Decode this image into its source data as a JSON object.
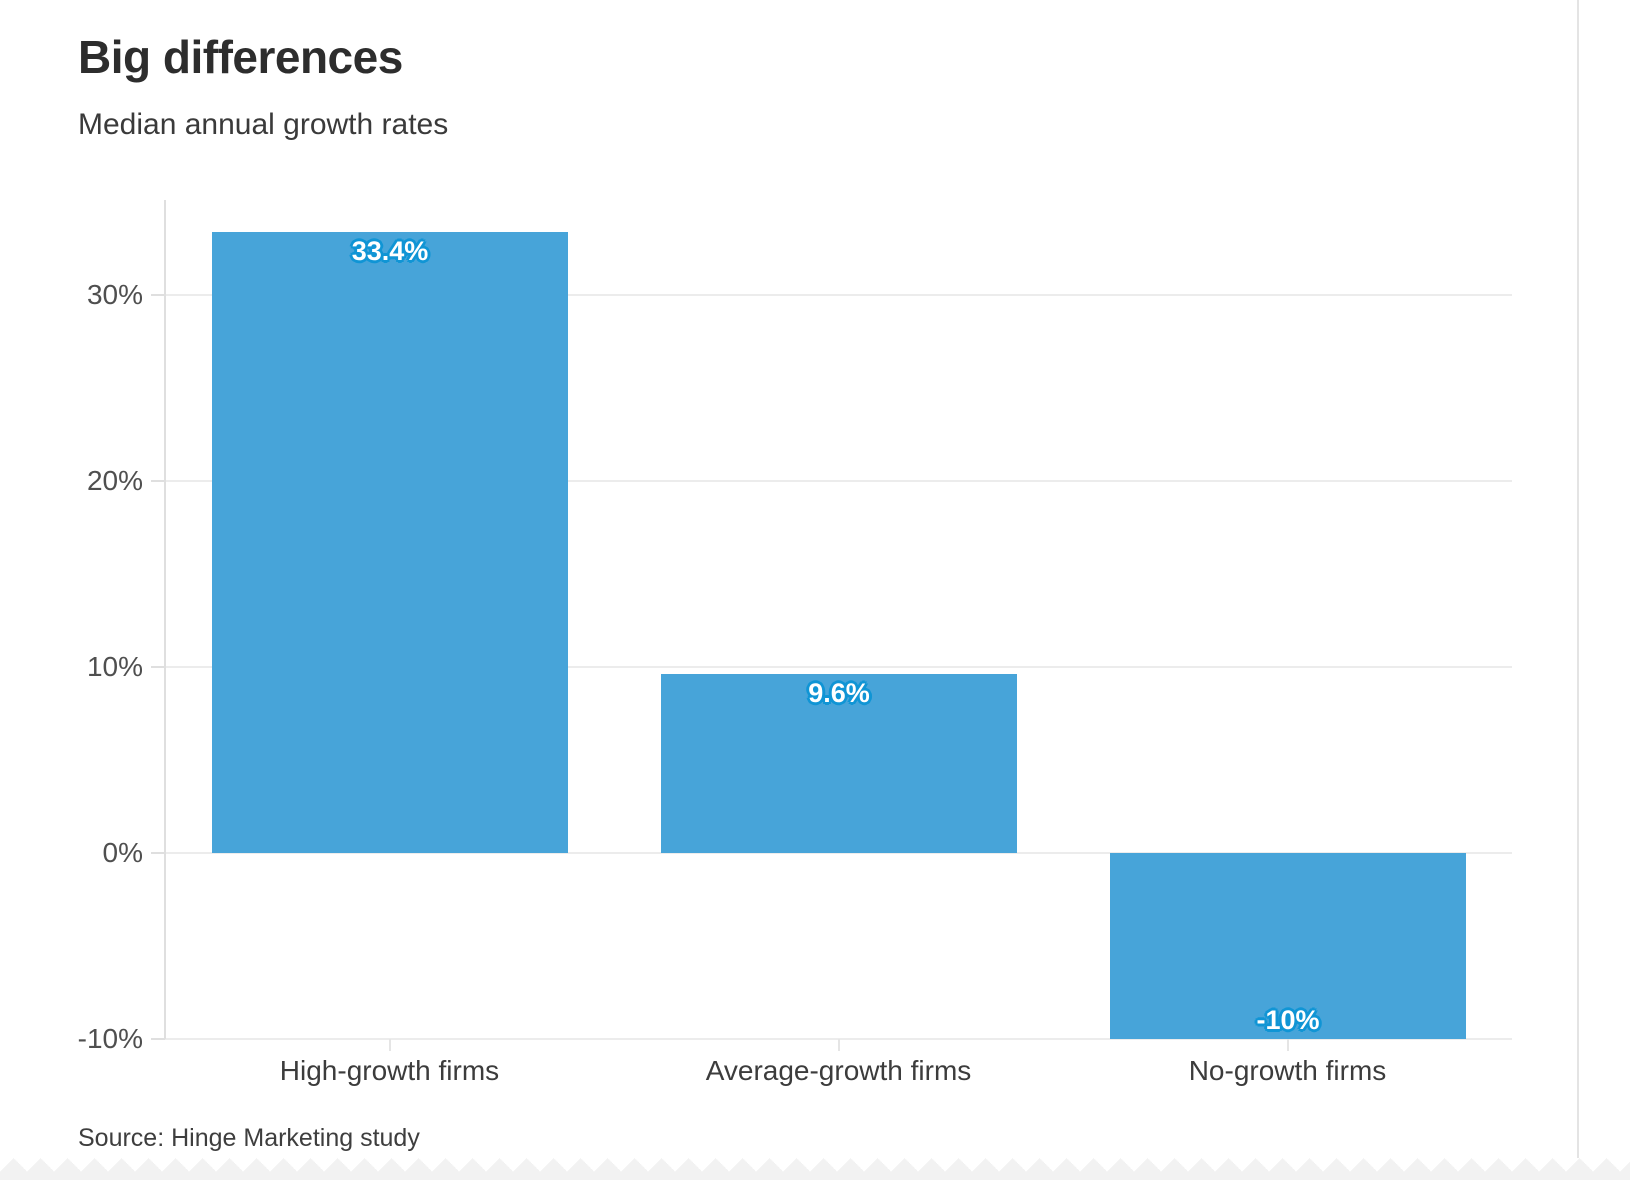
{
  "header": {
    "title": "Big differences",
    "subtitle": "Median annual growth rates"
  },
  "source": {
    "text": "Source: Hinge Marketing study"
  },
  "chart_data": {
    "type": "bar",
    "title": "Big differences",
    "subtitle": "Median annual growth rates",
    "categories": [
      "High-growth firms",
      "Average-growth firms",
      "No-growth firms"
    ],
    "values": [
      33.4,
      9.6,
      -10
    ],
    "value_labels": [
      "33.4%",
      "9.6%",
      "-10%"
    ],
    "yticks": [
      30,
      20,
      10,
      0,
      -10
    ],
    "ytick_labels": [
      "30%",
      "20%",
      "10%",
      "0%",
      "-10%"
    ],
    "ylim": [
      -10.5,
      35.1
    ],
    "xlabel": "",
    "ylabel": "",
    "grid": true,
    "legend": "none",
    "bar_color": "#47a4d9",
    "value_label_color": "#ffffff",
    "value_label_halo": "#1095d5",
    "source": "Source: Hinge Marketing study"
  }
}
